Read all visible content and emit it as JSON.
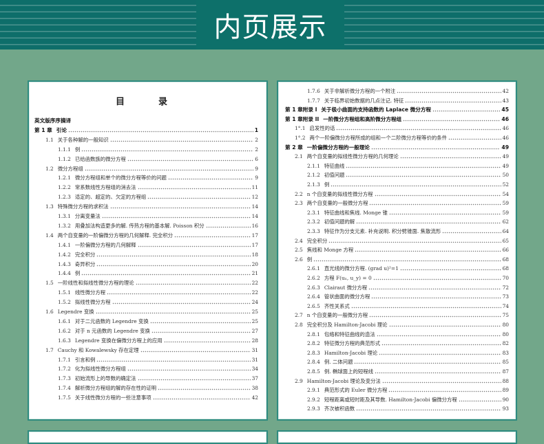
{
  "header": {
    "title": "内页展示"
  },
  "colors": {
    "band": "#0e6e6a",
    "background": "#72a78a",
    "page_border": "#2e8b80"
  },
  "left_page": {
    "heading": "目　录",
    "entries": [
      {
        "level": 0,
        "num": "",
        "text": "英文版序序摘译",
        "page": ""
      },
      {
        "level": 0,
        "num": "第 1 章",
        "text": "引论",
        "page": "1"
      },
      {
        "level": 1,
        "num": "1.1",
        "text": "关于各种解的一般知识",
        "page": "2"
      },
      {
        "level": 2,
        "num": "1.1.1",
        "text": "例",
        "page": "2"
      },
      {
        "level": 2,
        "num": "1.1.2",
        "text": "已给函数族的微分方程",
        "page": "6"
      },
      {
        "level": 1,
        "num": "1.2",
        "text": "微分方程组",
        "page": "9"
      },
      {
        "level": 2,
        "num": "1.2.1",
        "text": "微分方程组和单个的微分方程等价的问题",
        "page": "9"
      },
      {
        "level": 2,
        "num": "1.2.2",
        "text": "常系数线性方程组的消去法",
        "page": "11"
      },
      {
        "level": 2,
        "num": "1.2.3",
        "text": "适定的、超定的、欠定的方程组",
        "page": "12"
      },
      {
        "level": 1,
        "num": "1.3",
        "text": "特殊微分方程的求积法",
        "page": "14"
      },
      {
        "level": 2,
        "num": "1.3.1",
        "text": "分离变量法",
        "page": "14"
      },
      {
        "level": 2,
        "num": "1.3.2",
        "text": "用叠加法构造更多的解. 传热方程的基本解. Poisson 积分",
        "page": "16"
      },
      {
        "level": 1,
        "num": "1.4",
        "text": "两个自变量的一阶偏微分方程的几何解释. 完全积分",
        "page": "17"
      },
      {
        "level": 2,
        "num": "1.4.1",
        "text": "一阶偏微分方程的几何解释",
        "page": "17"
      },
      {
        "level": 2,
        "num": "1.4.2",
        "text": "完全积分",
        "page": "18"
      },
      {
        "level": 2,
        "num": "1.4.3",
        "text": "奇异积分",
        "page": "20"
      },
      {
        "level": 2,
        "num": "1.4.4",
        "text": "例",
        "page": "21"
      },
      {
        "level": 1,
        "num": "1.5",
        "text": "一阶线性和拟线性微分方程的理论",
        "page": "22"
      },
      {
        "level": 2,
        "num": "1.5.1",
        "text": "线性微分方程",
        "page": "22"
      },
      {
        "level": 2,
        "num": "1.5.2",
        "text": "拟线性微分方程",
        "page": "24"
      },
      {
        "level": 1,
        "num": "1.6",
        "text": "Legendre 变换",
        "page": "25"
      },
      {
        "level": 2,
        "num": "1.6.1",
        "text": "对于二元函数的 Legendre 变换",
        "page": "25"
      },
      {
        "level": 2,
        "num": "1.6.2",
        "text": "对于 n 元函数的 Legendre 变换",
        "page": "27"
      },
      {
        "level": 2,
        "num": "1.6.3",
        "text": "Legendre 变换在偏微分方程上的应用",
        "page": "28"
      },
      {
        "level": 1,
        "num": "1.7",
        "text": "Cauchy 和 Kowalewsky 存在定理",
        "page": "31"
      },
      {
        "level": 2,
        "num": "1.7.1",
        "text": "引言和例",
        "page": "31"
      },
      {
        "level": 2,
        "num": "1.7.2",
        "text": "化为拟线性微分方程组",
        "page": "34"
      },
      {
        "level": 2,
        "num": "1.7.3",
        "text": "初始流形上的导数的确定法",
        "page": "37"
      },
      {
        "level": 2,
        "num": "1.7.4",
        "text": "解析微分方程组的解的存在性的证明",
        "page": "38"
      },
      {
        "level": 2,
        "num": "1.7.5",
        "text": "关于线性微分方程的一些注意事项",
        "page": "42"
      }
    ]
  },
  "right_page": {
    "entries": [
      {
        "level": 2,
        "num": "1.7.6",
        "text": "关于非解析微分方程的一个附注",
        "page": "42"
      },
      {
        "level": 2,
        "num": "1.7.7",
        "text": "关于临界初始数据的几点注记. 特征",
        "page": "43"
      },
      {
        "level": 0,
        "num": "第 1 章附录 I",
        "text": "关于极小曲面的支持函数的 Laplace 微分方程",
        "page": "45"
      },
      {
        "level": 0,
        "num": "第 1 章附录 II",
        "text": "一阶微分方程组和高阶微分方程组",
        "page": "46"
      },
      {
        "level": 1,
        "num": "1°.1",
        "text": "启发性的话",
        "page": "46"
      },
      {
        "level": 1,
        "num": "1°.2",
        "text": "两个一阶偏微分方程所成的组和一个二阶微分方程等价的条件",
        "page": "46"
      },
      {
        "level": 0,
        "num": "第 2 章",
        "text": "一阶偏微分方程的一般理论",
        "page": "49"
      },
      {
        "level": 1,
        "num": "2.1",
        "text": "两个自变量的拟线性微分方程的几何理论",
        "page": "49"
      },
      {
        "level": 2,
        "num": "2.1.1",
        "text": "特征曲线",
        "page": "49"
      },
      {
        "level": 2,
        "num": "2.1.2",
        "text": "初值问题",
        "page": "50"
      },
      {
        "level": 2,
        "num": "2.1.3",
        "text": "例",
        "page": "52"
      },
      {
        "level": 1,
        "num": "2.2",
        "text": "n 个自变量的拟线性微分方程",
        "page": "54"
      },
      {
        "level": 1,
        "num": "2.3",
        "text": "两个自变量的一般微分方程",
        "page": "59"
      },
      {
        "level": 2,
        "num": "2.3.1",
        "text": "特征曲线和焦线. Monge 锥",
        "page": "59"
      },
      {
        "level": 2,
        "num": "2.3.2",
        "text": "初值问题的解",
        "page": "62"
      },
      {
        "level": 2,
        "num": "2.3.3",
        "text": "特征作为分支元素. 补充说明. 积分劈锥面. 焦散流形",
        "page": "64"
      },
      {
        "level": 1,
        "num": "2.4",
        "text": "完全积分",
        "page": "65"
      },
      {
        "level": 1,
        "num": "2.5",
        "text": "焦线和 Monge 方程",
        "page": "66"
      },
      {
        "level": 1,
        "num": "2.6",
        "text": "例",
        "page": "68"
      },
      {
        "level": 2,
        "num": "2.6.1",
        "text": "直光线的微分方程. (grad u)²=1",
        "page": "68"
      },
      {
        "level": 2,
        "num": "2.6.2",
        "text": "方程 F(uₓ, u_y) = 0",
        "page": "70"
      },
      {
        "level": 2,
        "num": "2.6.3",
        "text": "Clairaut 微分方程",
        "page": "72"
      },
      {
        "level": 2,
        "num": "2.6.4",
        "text": "管状曲面的微分方程",
        "page": "73"
      },
      {
        "level": 2,
        "num": "2.6.5",
        "text": "齐性关系式",
        "page": "74"
      },
      {
        "level": 1,
        "num": "2.7",
        "text": "n 个自变量的一般微分方程",
        "page": "75"
      },
      {
        "level": 1,
        "num": "2.8",
        "text": "完全积分及 Hamilton-Jacobi 理论",
        "page": "80"
      },
      {
        "level": 2,
        "num": "2.8.1",
        "text": "包络和特征曲线的造法",
        "page": "80"
      },
      {
        "level": 2,
        "num": "2.8.2",
        "text": "特征微分方程的典范形式",
        "page": "82"
      },
      {
        "level": 2,
        "num": "2.8.3",
        "text": "Hamilton-Jacobi 理论",
        "page": "83"
      },
      {
        "level": 2,
        "num": "2.8.4",
        "text": "例. 二体问题",
        "page": "85"
      },
      {
        "level": 2,
        "num": "2.8.5",
        "text": "例. 椭球面上的短程线",
        "page": "87"
      },
      {
        "level": 1,
        "num": "2.9",
        "text": "Hamilton-Jacobi 理论及变分法",
        "page": "88"
      },
      {
        "level": 2,
        "num": "2.9.1",
        "text": "典范形式的 Euler 微分方程",
        "page": "89"
      },
      {
        "level": 2,
        "num": "2.9.2",
        "text": "短程距离或短时距及其导数. Hamilton-Jacobi 偏微分方程",
        "page": "90"
      },
      {
        "level": 2,
        "num": "2.9.3",
        "text": "齐次被积函数",
        "page": "93"
      }
    ]
  }
}
